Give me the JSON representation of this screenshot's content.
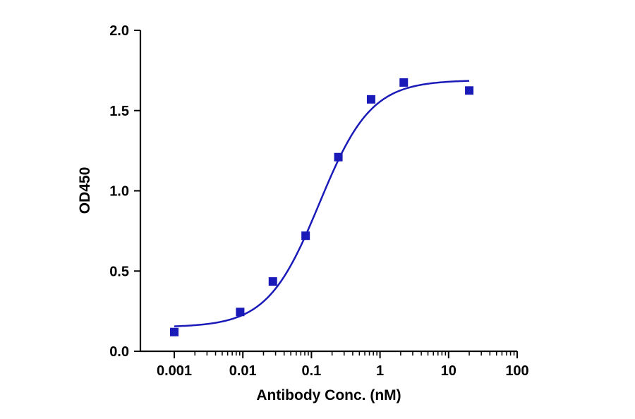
{
  "chart_data": {
    "type": "scatter",
    "title": "",
    "xlabel": "Antibody Conc. (nM)",
    "ylabel": "OD450",
    "x_scale": "log",
    "xlim": [
      0.001,
      100
    ],
    "ylim": [
      0,
      2.0
    ],
    "x_tick_values": [
      0.001,
      0.01,
      0.1,
      1,
      10,
      100
    ],
    "x_tick_labels": [
      "0.001",
      "0.01",
      "0.1",
      "1",
      "10",
      "100"
    ],
    "y_tick_values": [
      0,
      0.5,
      1.0,
      1.5,
      2.0
    ],
    "y_tick_labels": [
      "0.0",
      "0.5",
      "1.0",
      "1.5",
      "2.0"
    ],
    "grid": false,
    "legend": "none",
    "marker": "square",
    "color": "#1a1ab8",
    "series": [
      {
        "x": [
          0.001,
          0.00914,
          0.0274,
          0.0823,
          0.247,
          0.741,
          2.22,
          20.0
        ],
        "y": [
          0.12,
          0.245,
          0.435,
          0.72,
          1.21,
          1.57,
          1.675,
          1.625
        ]
      }
    ],
    "fit": {
      "model": "4PL",
      "bottom": 0.15,
      "top": 1.69,
      "ec50": 0.13,
      "hill": 1.15
    }
  }
}
